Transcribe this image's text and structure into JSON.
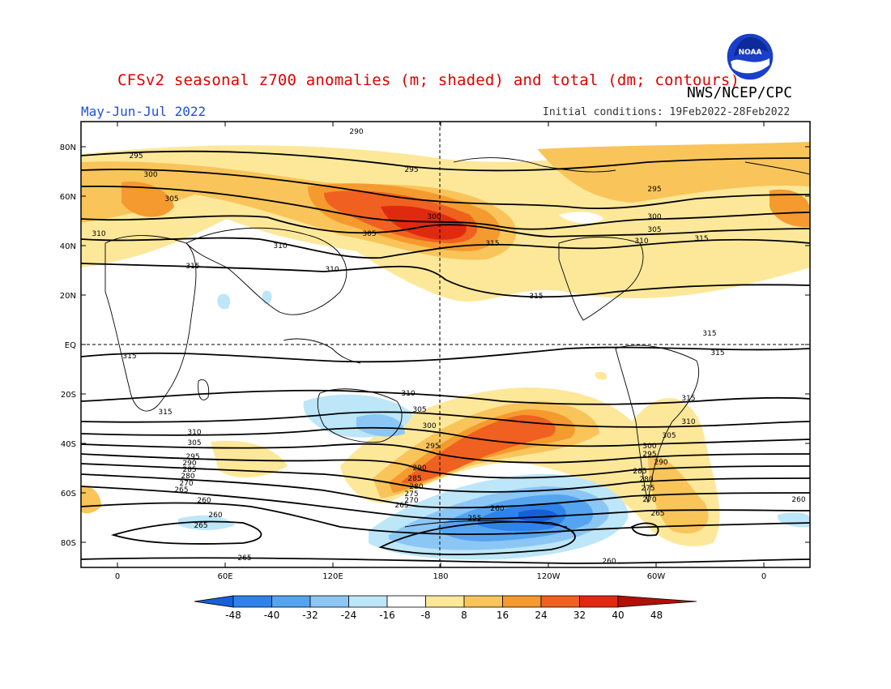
{
  "title": "CFSv2 seasonal z700 anomalies (m; shaded) and total (dm; contours)",
  "period": "May-Jun-Jul 2022",
  "agency": "NWS/NCEP/CPC",
  "initial_conditions": "Initial conditions: 19Feb2022-28Feb2022",
  "logo_text": "NOAA",
  "colors": {
    "title": "#e00000",
    "period": "#1f4fe0",
    "scale": [
      "#1560d8",
      "#2f82ea",
      "#55a4f0",
      "#8cc6f5",
      "#bde6f8",
      "#ffffff",
      "#fde89a",
      "#f9c45a",
      "#f59a2e",
      "#f06020",
      "#e02a10",
      "#b01008"
    ]
  },
  "axes": {
    "lat_labels": [
      "80N",
      "60N",
      "40N",
      "20N",
      "EQ",
      "20S",
      "40S",
      "60S",
      "80S"
    ],
    "lon_labels": [
      "0",
      "60E",
      "120E",
      "180",
      "120W",
      "60W",
      "0"
    ]
  },
  "colorbar": {
    "labels": [
      "-48",
      "-40",
      "-32",
      "-24",
      "-16",
      "-8",
      "8",
      "16",
      "24",
      "32",
      "40",
      "48"
    ]
  },
  "contour_labels": [
    "290",
    "295",
    "300",
    "305",
    "310",
    "315",
    "285",
    "280",
    "275",
    "270",
    "265",
    "260",
    "255"
  ],
  "map_type": "global equirectangular anomaly map",
  "anomaly_features": [
    {
      "region": "North Pacific / Kamchatka",
      "sign": "positive",
      "max_m": 40
    },
    {
      "region": "South Pacific 40S-60S",
      "sign": "positive",
      "max_m": 40
    },
    {
      "region": "Southern Ocean near 120W",
      "sign": "negative",
      "max_m": -40
    },
    {
      "region": "Australia",
      "sign": "negative",
      "max_m": -16
    }
  ]
}
